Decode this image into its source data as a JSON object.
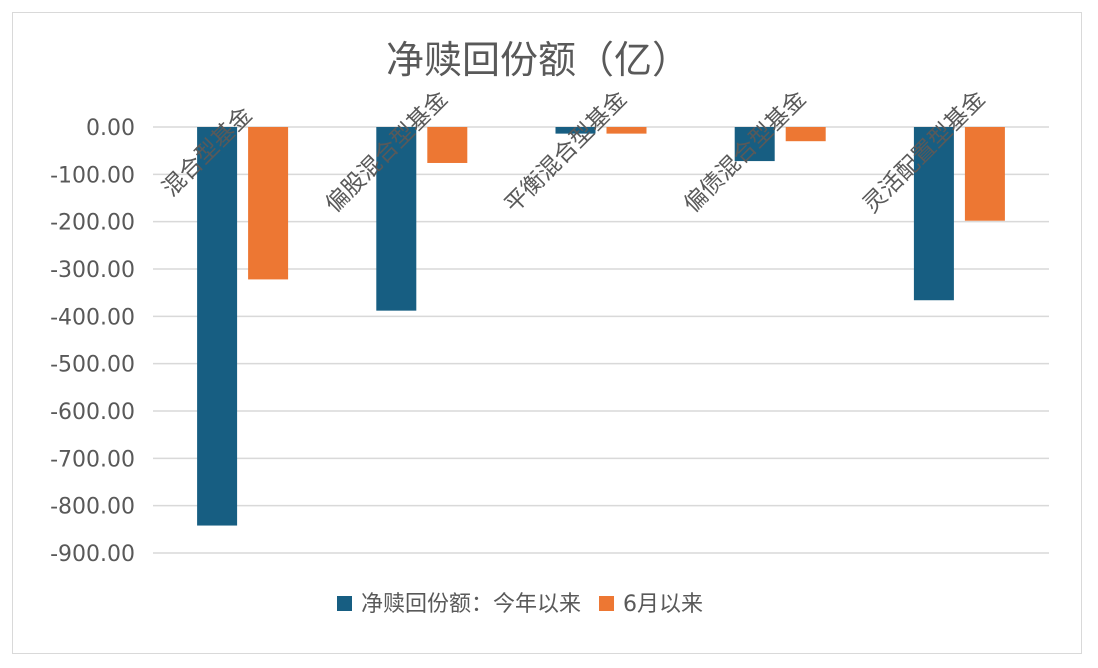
{
  "chart_data": {
    "type": "bar",
    "title": "净赎回份额（亿）",
    "categories": [
      "混合型基金",
      "偏股混合型基金",
      "平衡混合型基金",
      "偏债混合型基金",
      "灵活配置型基金"
    ],
    "series": [
      {
        "name": "净赎回份额：今年以来",
        "color": "#175e82",
        "values": [
          -842,
          -388,
          -14,
          -72,
          -366
        ]
      },
      {
        "name": "6月以来",
        "color": "#ed7733",
        "values": [
          -322,
          -76,
          -14,
          -30,
          -198
        ]
      }
    ],
    "yticks": [
      "0.00",
      "-100.00",
      "-200.00",
      "-300.00",
      "-400.00",
      "-500.00",
      "-600.00",
      "-700.00",
      "-800.00",
      "-900.00"
    ],
    "ylim": [
      -900,
      0
    ],
    "grid": true,
    "legend_position": "bottom"
  }
}
